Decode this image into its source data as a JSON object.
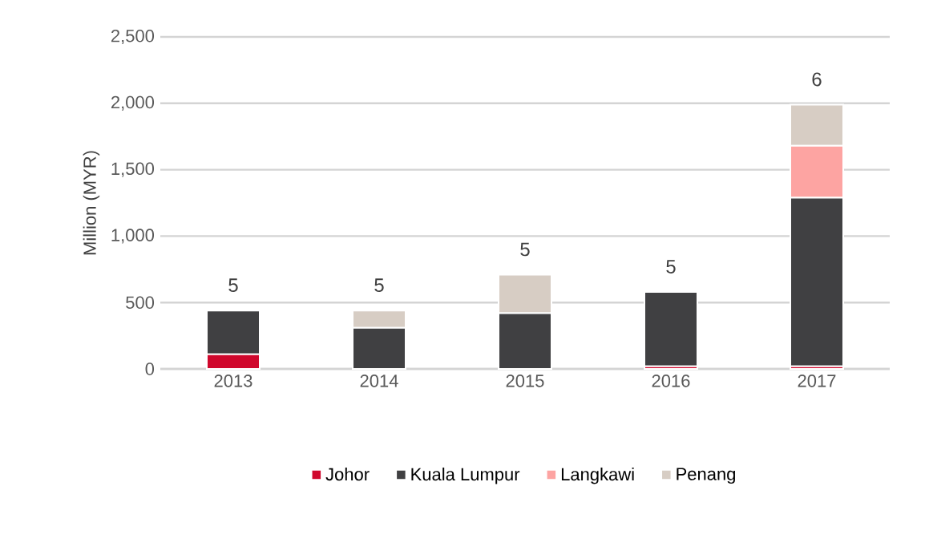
{
  "chart_data": {
    "type": "bar",
    "stacked": true,
    "ylabel": "Million (MYR)",
    "categories": [
      "2013",
      "2014",
      "2015",
      "2016",
      "2017"
    ],
    "series": [
      {
        "name": "Johor",
        "color": "#d0072c",
        "values": [
          110,
          null,
          null,
          20,
          20
        ]
      },
      {
        "name": "Kuala Lumpur",
        "color": "#404042",
        "values": [
          330,
          310,
          420,
          560,
          1270
        ]
      },
      {
        "name": "Langkawi",
        "color": "#fda4a2",
        "values": [
          null,
          null,
          null,
          null,
          390
        ]
      },
      {
        "name": "Penang",
        "color": "#d7cdc4",
        "values": [
          null,
          130,
          290,
          null,
          310
        ]
      }
    ],
    "ylim": [
      0,
      2500
    ],
    "yticks": [
      0,
      500,
      {
        "value": 1000,
        "label": "1,000"
      },
      {
        "value": 1500,
        "label": "1,500"
      },
      {
        "value": 2000,
        "label": "2,000"
      },
      {
        "value": 2500,
        "label": "2,500"
      }
    ],
    "grid": "y",
    "legend": "bottom",
    "annotations": [
      "5",
      "5",
      "5",
      "5",
      "6"
    ]
  }
}
